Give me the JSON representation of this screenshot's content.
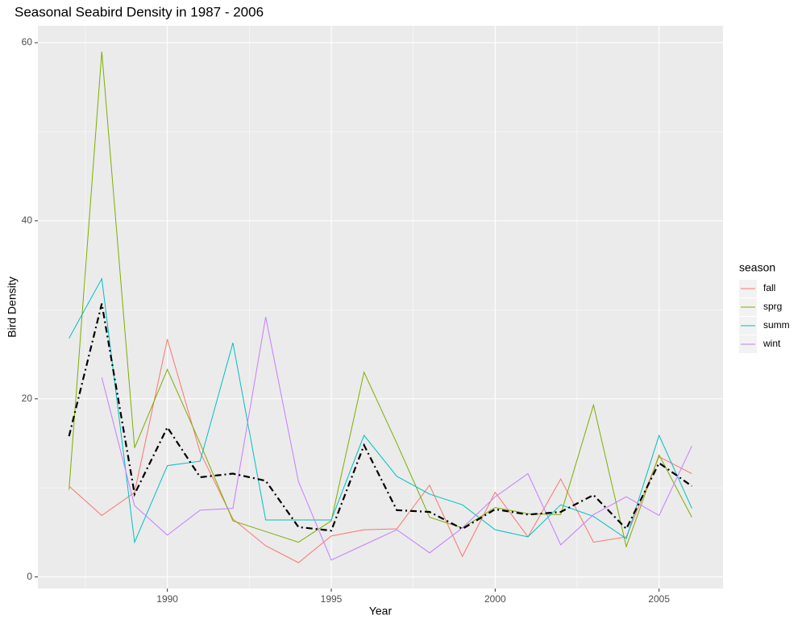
{
  "chart_data": {
    "type": "line",
    "title": "Seasonal Seabird Density in 1987 - 2006",
    "x_label": "Year",
    "y_label": "Bird Density",
    "legend_title": "season",
    "legend": "right",
    "x": [
      1987,
      1988,
      1989,
      1990,
      1991,
      1992,
      1993,
      1994,
      1995,
      1996,
      1997,
      1998,
      1999,
      2000,
      2001,
      2002,
      2003,
      2004,
      2005,
      2006
    ],
    "series": [
      {
        "name": "fall",
        "color": "#F8766D",
        "values": [
          10.2,
          6.9,
          9.5,
          26.7,
          14,
          6.5,
          3.5,
          1.6,
          4.6,
          5.3,
          5.4,
          10.3,
          2.3,
          9.5,
          4.5,
          11,
          3.9,
          4.5,
          13.5,
          11.6
        ]
      },
      {
        "name": "sprg",
        "color": "#7CAE00",
        "values": [
          9.8,
          59,
          14.5,
          23.3,
          15,
          6.3,
          5.1,
          3.9,
          6.3,
          23,
          15,
          6.7,
          5.5,
          7.8,
          7.1,
          7,
          19.3,
          3.4,
          13.7,
          6.7
        ]
      },
      {
        "name": "summ",
        "color": "#00BFC4",
        "values": [
          26.8,
          33.5,
          3.9,
          12.5,
          13,
          26.3,
          6.4,
          6.4,
          6.4,
          15.9,
          11.3,
          9.3,
          8.1,
          5.3,
          4.5,
          8.1,
          6.8,
          4.3,
          15.9,
          7.7
        ]
      },
      {
        "name": "wint",
        "color": "#C77CFF",
        "values": [
          null,
          22.4,
          8,
          4.7,
          7.5,
          7.7,
          29.2,
          10.7,
          1.9,
          3.6,
          5.3,
          2.7,
          5.5,
          9,
          11.6,
          3.6,
          7,
          9,
          6.9,
          14.7
        ]
      },
      {
        "color": "#000000",
        "dash": "dashdot",
        "values": [
          15.8,
          30.7,
          9.3,
          16.8,
          11.2,
          11.6,
          10.8,
          5.6,
          5.2,
          14.8,
          7.5,
          7.3,
          5.4,
          7.6,
          7,
          7.3,
          9.2,
          5.4,
          12.8,
          10.2
        ]
      }
    ],
    "xlim": [
      1986.05,
      2006.95
    ],
    "xticks": [
      1990,
      1995,
      2000,
      2005
    ],
    "x_minor_grid": [
      1987.5,
      1992.5,
      1997.5,
      2002.5
    ],
    "ylim": [
      -1.3,
      61.9
    ],
    "yticks": [
      0,
      20,
      40,
      60
    ],
    "y_minor_grid": [
      10,
      30,
      50
    ],
    "grid": true
  }
}
